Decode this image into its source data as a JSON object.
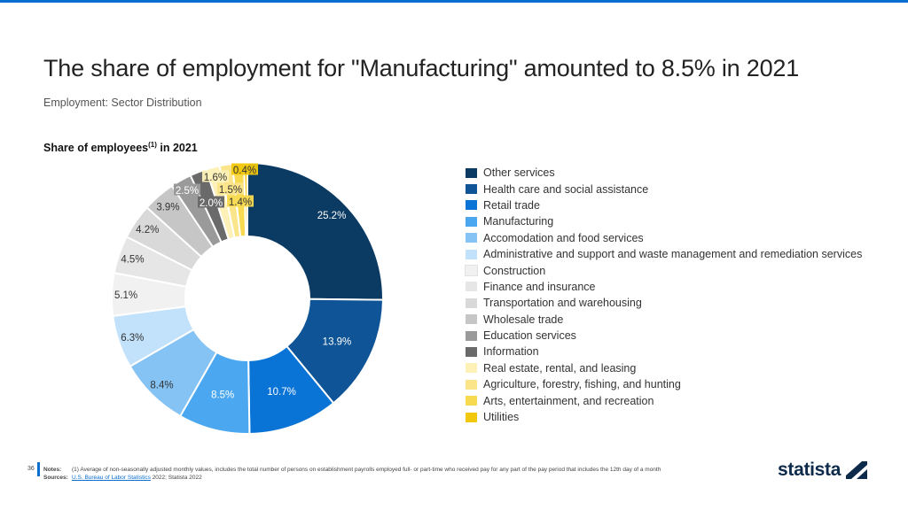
{
  "header": {
    "title": "The share of employment for \"Manufacturing\" amounted to 8.5% in 2021",
    "subtitle": "Employment: Sector Distribution"
  },
  "chart_heading": {
    "text": "Share of employees",
    "sup": "(1)",
    "suffix": " in 2021"
  },
  "chart_data": {
    "type": "pie",
    "donut": true,
    "title": "Share of employees(1) in 2021",
    "categories": [
      "Other services",
      "Health care and social assistance",
      "Retail trade",
      "Manufacturing",
      "Accomodation and food services",
      "Administrative and support and waste management and remediation services",
      "Construction",
      "Finance and insurance",
      "Transportation and warehousing",
      "Wholesale trade",
      "Education services",
      "Information",
      "Real estate, rental, and leasing",
      "Agriculture, forestry, fishing, and hunting",
      "Arts, entertainment, and recreation",
      "Utilities"
    ],
    "values": [
      25.2,
      13.9,
      10.7,
      8.5,
      8.4,
      6.3,
      5.1,
      4.5,
      4.2,
      3.9,
      2.5,
      2.0,
      1.6,
      1.5,
      1.4,
      0.4
    ],
    "labels": [
      "25.2%",
      "13.9%",
      "10.7%",
      "8.5%",
      "8.4%",
      "6.3%",
      "5.1%",
      "4.5%",
      "4.2%",
      "3.9%",
      "2.5%",
      "2.0%",
      "1.6%",
      "1.5%",
      "1.4%",
      "0.4%"
    ],
    "colors": [
      "#0b3a63",
      "#0e5496",
      "#0a74d6",
      "#4ba8f0",
      "#85c3f5",
      "#c2e1fa",
      "#f1f1f1",
      "#e6e6e6",
      "#d9d9d9",
      "#c6c6c6",
      "#9a9a9a",
      "#6a6a6a",
      "#fdf1b8",
      "#fbe58a",
      "#f8da50",
      "#f2c80c"
    ],
    "legend_position": "right"
  },
  "footer": {
    "page_number": "36",
    "notes_label": "Notes:",
    "notes_text": "(1) Average of non-seasonally adjusted monthly values, includes the total number of persons on establishment payrolls employed full- or part-time who received pay for any part of the pay period that includes the 12th day of a month",
    "sources_label": "Sources:",
    "sources_link": "U.S. Bureau of Labor Statistics",
    "sources_text": " 2022; Statista 2022"
  },
  "brand": {
    "name": "statista"
  }
}
